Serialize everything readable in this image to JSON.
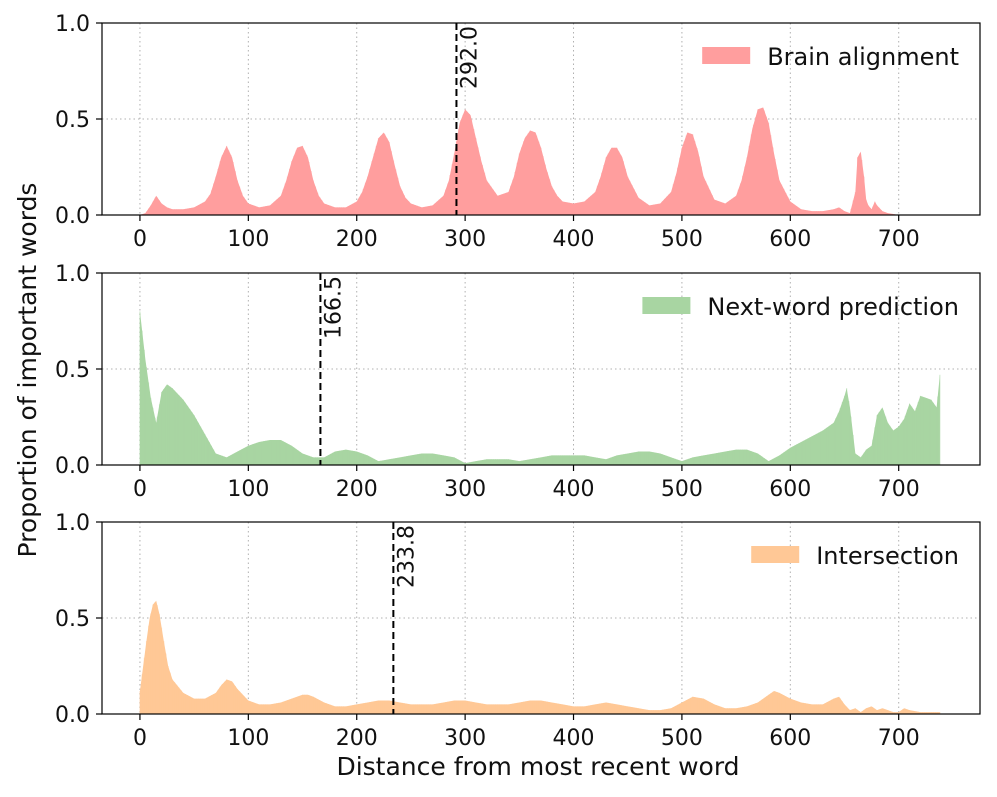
{
  "figure": {
    "ylabel": "Proportion of important words",
    "xlabel": "Distance from most recent word"
  },
  "chart_data": [
    {
      "type": "area",
      "series": [
        {
          "name": "Brain alignment",
          "color": "#ff9e9e"
        }
      ],
      "legend_position": "top-right",
      "grid": true,
      "xlim": [
        -35,
        775
      ],
      "ylim": [
        0.0,
        1.0
      ],
      "xticks": [
        0,
        100,
        200,
        300,
        400,
        500,
        600,
        700
      ],
      "yticks": [
        0.0,
        0.5,
        1.0
      ],
      "vline": {
        "x": 292.0,
        "label": "292.0"
      },
      "x": [
        0,
        5,
        10,
        15,
        20,
        25,
        30,
        40,
        50,
        60,
        65,
        70,
        75,
        80,
        85,
        90,
        95,
        100,
        110,
        120,
        130,
        135,
        140,
        145,
        150,
        155,
        160,
        165,
        170,
        180,
        190,
        200,
        205,
        210,
        215,
        220,
        225,
        230,
        235,
        240,
        245,
        250,
        260,
        270,
        280,
        285,
        290,
        295,
        300,
        305,
        310,
        315,
        320,
        330,
        340,
        345,
        350,
        355,
        360,
        365,
        370,
        375,
        380,
        385,
        390,
        400,
        410,
        420,
        425,
        430,
        435,
        440,
        445,
        450,
        460,
        470,
        480,
        490,
        495,
        500,
        505,
        510,
        515,
        520,
        530,
        540,
        550,
        555,
        560,
        565,
        570,
        575,
        580,
        585,
        590,
        600,
        610,
        620,
        630,
        640,
        645,
        650,
        655,
        660,
        662,
        665,
        668,
        670,
        672,
        675,
        678,
        680,
        685,
        690,
        700
      ],
      "y": [
        0,
        0.01,
        0.05,
        0.1,
        0.06,
        0.04,
        0.03,
        0.03,
        0.04,
        0.07,
        0.11,
        0.2,
        0.3,
        0.36,
        0.3,
        0.18,
        0.1,
        0.06,
        0.04,
        0.05,
        0.1,
        0.18,
        0.28,
        0.35,
        0.36,
        0.3,
        0.18,
        0.1,
        0.06,
        0.04,
        0.04,
        0.07,
        0.12,
        0.2,
        0.3,
        0.4,
        0.43,
        0.38,
        0.26,
        0.15,
        0.09,
        0.06,
        0.04,
        0.05,
        0.1,
        0.18,
        0.32,
        0.48,
        0.55,
        0.52,
        0.4,
        0.28,
        0.18,
        0.1,
        0.12,
        0.2,
        0.32,
        0.4,
        0.44,
        0.43,
        0.35,
        0.24,
        0.15,
        0.1,
        0.07,
        0.06,
        0.07,
        0.12,
        0.2,
        0.3,
        0.35,
        0.35,
        0.3,
        0.2,
        0.09,
        0.05,
        0.06,
        0.12,
        0.22,
        0.35,
        0.43,
        0.42,
        0.33,
        0.2,
        0.08,
        0.06,
        0.1,
        0.18,
        0.3,
        0.45,
        0.55,
        0.56,
        0.48,
        0.32,
        0.18,
        0.07,
        0.03,
        0.02,
        0.02,
        0.03,
        0.04,
        0.02,
        0.01,
        0.12,
        0.3,
        0.33,
        0.2,
        0.08,
        0.05,
        0.03,
        0.07,
        0.05,
        0.02,
        0.01,
        0
      ]
    },
    {
      "type": "area",
      "series": [
        {
          "name": "Next-word prediction",
          "color": "#a8d5a2"
        }
      ],
      "legend_position": "top-right",
      "grid": true,
      "xlim": [
        -35,
        775
      ],
      "ylim": [
        0.0,
        1.0
      ],
      "xticks": [
        0,
        100,
        200,
        300,
        400,
        500,
        600,
        700
      ],
      "yticks": [
        0.0,
        0.5,
        1.0
      ],
      "vline": {
        "x": 166.5,
        "label": "166.5"
      },
      "x": [
        0,
        2,
        5,
        10,
        15,
        20,
        25,
        30,
        40,
        50,
        60,
        70,
        80,
        90,
        100,
        110,
        120,
        130,
        140,
        150,
        160,
        170,
        180,
        190,
        200,
        210,
        220,
        230,
        240,
        250,
        260,
        270,
        280,
        290,
        300,
        310,
        320,
        330,
        340,
        350,
        360,
        370,
        380,
        390,
        400,
        410,
        420,
        430,
        440,
        450,
        460,
        470,
        480,
        490,
        500,
        510,
        520,
        530,
        540,
        550,
        560,
        570,
        580,
        590,
        600,
        610,
        620,
        630,
        640,
        645,
        650,
        652,
        655,
        660,
        665,
        670,
        675,
        680,
        685,
        690,
        695,
        700,
        705,
        710,
        715,
        720,
        725,
        730,
        735,
        738
      ],
      "y": [
        0.8,
        0.7,
        0.55,
        0.35,
        0.22,
        0.38,
        0.42,
        0.4,
        0.34,
        0.26,
        0.16,
        0.06,
        0.04,
        0.07,
        0.1,
        0.12,
        0.13,
        0.13,
        0.1,
        0.06,
        0.04,
        0.04,
        0.07,
        0.08,
        0.07,
        0.05,
        0.02,
        0.03,
        0.04,
        0.05,
        0.06,
        0.06,
        0.05,
        0.04,
        0.01,
        0.02,
        0.03,
        0.03,
        0.03,
        0.02,
        0.03,
        0.04,
        0.05,
        0.05,
        0.05,
        0.05,
        0.04,
        0.03,
        0.05,
        0.06,
        0.07,
        0.07,
        0.06,
        0.04,
        0.02,
        0.04,
        0.05,
        0.06,
        0.07,
        0.08,
        0.08,
        0.06,
        0.02,
        0.05,
        0.09,
        0.12,
        0.15,
        0.18,
        0.22,
        0.28,
        0.36,
        0.4,
        0.3,
        0.06,
        0.04,
        0.08,
        0.1,
        0.26,
        0.3,
        0.22,
        0.18,
        0.2,
        0.24,
        0.32,
        0.28,
        0.36,
        0.35,
        0.34,
        0.3,
        0.47
      ]
    },
    {
      "type": "area",
      "series": [
        {
          "name": "Intersection",
          "color": "#ffc896"
        }
      ],
      "legend_position": "top-right",
      "grid": true,
      "xlim": [
        -35,
        775
      ],
      "ylim": [
        0.0,
        1.0
      ],
      "xticks": [
        0,
        100,
        200,
        300,
        400,
        500,
        600,
        700
      ],
      "yticks": [
        0.0,
        0.5,
        1.0
      ],
      "vline": {
        "x": 233.8,
        "label": "233.8"
      },
      "x": [
        0,
        3,
        6,
        9,
        12,
        15,
        18,
        22,
        26,
        30,
        40,
        50,
        60,
        70,
        75,
        80,
        85,
        90,
        100,
        110,
        120,
        130,
        140,
        150,
        155,
        160,
        170,
        180,
        190,
        200,
        210,
        220,
        230,
        240,
        250,
        260,
        270,
        280,
        290,
        295,
        300,
        310,
        320,
        330,
        340,
        350,
        360,
        370,
        380,
        390,
        400,
        410,
        420,
        430,
        440,
        450,
        460,
        470,
        480,
        490,
        500,
        510,
        520,
        530,
        540,
        550,
        560,
        570,
        580,
        585,
        590,
        600,
        610,
        620,
        630,
        640,
        645,
        650,
        655,
        660,
        665,
        670,
        675,
        680,
        685,
        690,
        695,
        700,
        705,
        710,
        720,
        730,
        738
      ],
      "y": [
        0.12,
        0.25,
        0.38,
        0.5,
        0.57,
        0.59,
        0.52,
        0.38,
        0.25,
        0.18,
        0.11,
        0.08,
        0.08,
        0.11,
        0.15,
        0.18,
        0.17,
        0.13,
        0.07,
        0.05,
        0.05,
        0.06,
        0.08,
        0.1,
        0.1,
        0.09,
        0.06,
        0.04,
        0.04,
        0.05,
        0.06,
        0.07,
        0.07,
        0.06,
        0.05,
        0.05,
        0.05,
        0.06,
        0.07,
        0.07,
        0.07,
        0.06,
        0.05,
        0.05,
        0.05,
        0.06,
        0.07,
        0.07,
        0.06,
        0.05,
        0.04,
        0.04,
        0.05,
        0.06,
        0.05,
        0.04,
        0.03,
        0.02,
        0.02,
        0.03,
        0.06,
        0.09,
        0.08,
        0.05,
        0.03,
        0.03,
        0.04,
        0.06,
        0.1,
        0.12,
        0.11,
        0.08,
        0.06,
        0.05,
        0.05,
        0.08,
        0.09,
        0.05,
        0.02,
        0.03,
        0.01,
        0.03,
        0.04,
        0.02,
        0.03,
        0.02,
        0.01,
        0.01,
        0.03,
        0.02,
        0.01,
        0.01,
        0.01
      ]
    }
  ]
}
